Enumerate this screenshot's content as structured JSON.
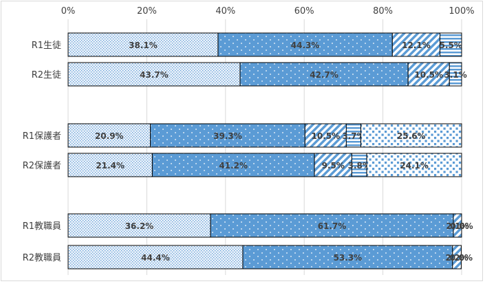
{
  "chart_data": {
    "type": "bar",
    "orientation": "horizontal",
    "stacked": "percent",
    "xlim": [
      0,
      100
    ],
    "x_ticks": [
      "0%",
      "20%",
      "40%",
      "60%",
      "80%",
      "100%"
    ],
    "grid": true,
    "colors": {
      "bar_fill": "#5b9bd5",
      "light_fill": "#dbe8f6",
      "stroke": "#000000",
      "grid": "#d9d9d9",
      "text": "#404040"
    },
    "rows": [
      {
        "label": "R1生徒",
        "values": [
          38.1,
          44.3,
          12.1,
          5.5
        ],
        "labels": [
          "38.1%",
          "44.3%",
          "12.1%",
          "5.5%"
        ]
      },
      {
        "label": "R2生徒",
        "values": [
          43.7,
          42.7,
          10.5,
          3.1
        ],
        "labels": [
          "43.7%",
          "42.7%",
          "10.5%",
          "3.1%"
        ]
      },
      {
        "label": "R1保護者",
        "values": [
          20.9,
          39.3,
          10.5,
          3.7,
          25.6
        ],
        "labels": [
          "20.9%",
          "39.3%",
          "10.5%",
          "3.7%",
          "25.6%"
        ]
      },
      {
        "label": "R2保護者",
        "values": [
          21.4,
          41.2,
          9.5,
          3.8,
          24.1
        ],
        "labels": [
          "21.4%",
          "41.2%",
          "9.5%",
          "3.8%",
          "24.1%"
        ]
      },
      {
        "label": "R1教職員",
        "values": [
          36.2,
          61.7,
          2.1,
          0.0
        ],
        "labels": [
          "36.2%",
          "61.7%",
          "2.1%",
          "0.0%"
        ]
      },
      {
        "label": "R2教職員",
        "values": [
          44.4,
          53.3,
          2.2,
          0.0
        ],
        "labels": [
          "44.4%",
          "53.3%",
          "2.2%",
          "0.0%"
        ]
      }
    ]
  }
}
